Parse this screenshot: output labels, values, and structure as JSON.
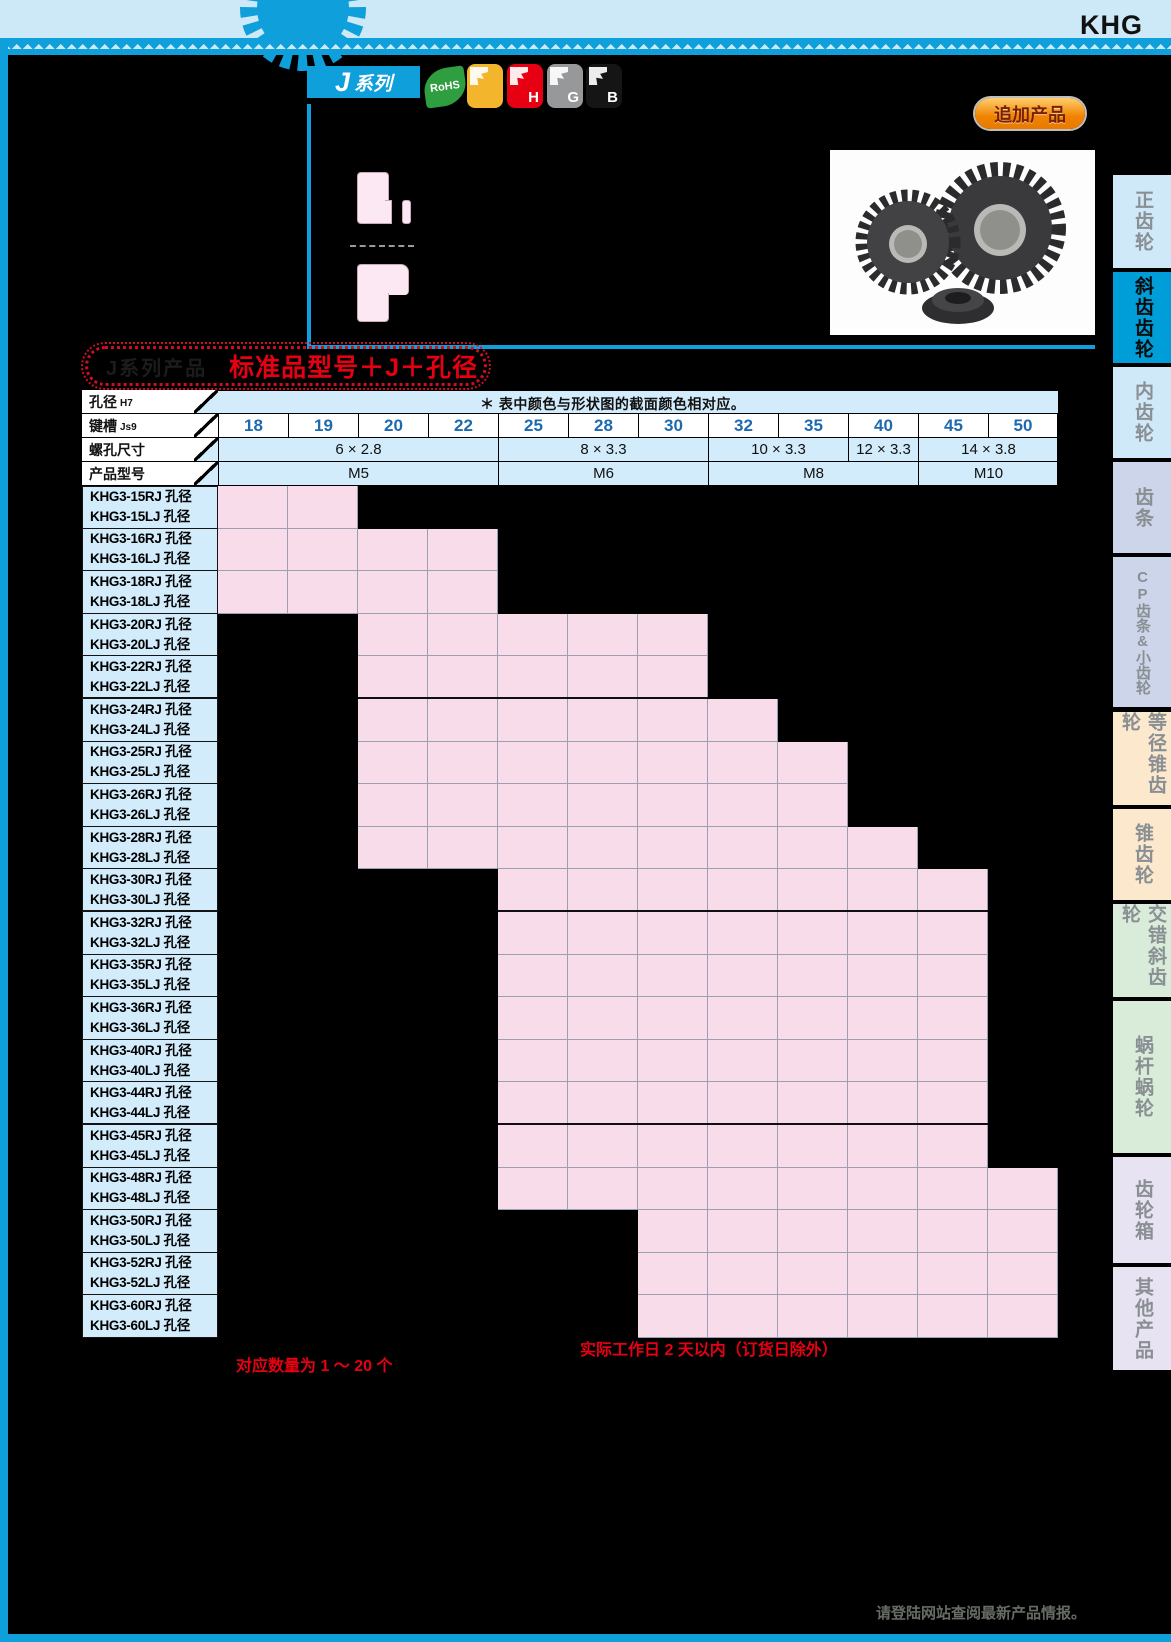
{
  "brand": "KHG",
  "header": {
    "series_badge_j": "J",
    "series_badge_text": "系列",
    "icons": [
      {
        "name": "rohs-icon",
        "label": "RoHS",
        "color": "#2f9e41"
      },
      {
        "name": "finishing-icon",
        "label": "",
        "color": "#f3b52c"
      },
      {
        "name": "hardened-icon",
        "label": "H",
        "color": "#e60012"
      },
      {
        "name": "ground-icon",
        "label": "G",
        "color": "#97989a"
      },
      {
        "name": "black-oxide-icon",
        "label": "B",
        "color": "#151515"
      }
    ],
    "addon_badge": "追加产品"
  },
  "banner": {
    "left_label": "J系列产品",
    "title": "标准品型号＋J＋孔径"
  },
  "table": {
    "corner_labels": [
      {
        "text": "孔径",
        "sub": "H7"
      },
      {
        "text": "键槽",
        "sub": "Js9"
      },
      {
        "text": "螺孔尺寸",
        "sub": ""
      },
      {
        "text": "产品型号",
        "sub": ""
      }
    ],
    "note": "＊ 表中颜色与形状图的截面颜色相对应。",
    "bores": [
      "18",
      "19",
      "20",
      "22",
      "25",
      "28",
      "30",
      "32",
      "35",
      "40",
      "45",
      "50"
    ],
    "tap_sizes": [
      {
        "text": "6 × 2.8",
        "start": 0,
        "end": 3
      },
      {
        "text": "8 × 3.3",
        "start": 4,
        "end": 6
      },
      {
        "text": "10 × 3.3",
        "start": 7,
        "end": 8
      },
      {
        "text": "12 × 3.3",
        "start": 9,
        "end": 9
      },
      {
        "text": "14 × 3.8",
        "start": 10,
        "end": 11
      }
    ],
    "modules": [
      {
        "text": "M5",
        "start": 0,
        "end": 3
      },
      {
        "text": "M6",
        "start": 4,
        "end": 6
      },
      {
        "text": "M8",
        "start": 7,
        "end": 9
      },
      {
        "text": "M10",
        "start": 10,
        "end": 11
      }
    ],
    "rows": [
      {
        "r": "KHG3-15RJ 孔径",
        "l": "KHG3-15LJ 孔径",
        "start": 0,
        "end": 1
      },
      {
        "r": "KHG3-16RJ 孔径",
        "l": "KHG3-16LJ 孔径",
        "start": 0,
        "end": 3
      },
      {
        "r": "KHG3-18RJ 孔径",
        "l": "KHG3-18LJ 孔径",
        "start": 0,
        "end": 3
      },
      {
        "r": "KHG3-20RJ 孔径",
        "l": "KHG3-20LJ 孔径",
        "start": 2,
        "end": 6
      },
      {
        "r": "KHG3-22RJ 孔径",
        "l": "KHG3-22LJ 孔径",
        "start": 2,
        "end": 6
      },
      {
        "r": "KHG3-24RJ 孔径",
        "l": "KHG3-24LJ 孔径",
        "start": 2,
        "end": 7
      },
      {
        "r": "KHG3-25RJ 孔径",
        "l": "KHG3-25LJ 孔径",
        "start": 2,
        "end": 8
      },
      {
        "r": "KHG3-26RJ 孔径",
        "l": "KHG3-26LJ 孔径",
        "start": 2,
        "end": 8
      },
      {
        "r": "KHG3-28RJ 孔径",
        "l": "KHG3-28LJ 孔径",
        "start": 2,
        "end": 9
      },
      {
        "r": "KHG3-30RJ 孔径",
        "l": "KHG3-30LJ 孔径",
        "start": 4,
        "end": 10
      },
      {
        "r": "KHG3-32RJ 孔径",
        "l": "KHG3-32LJ 孔径",
        "start": 4,
        "end": 10
      },
      {
        "r": "KHG3-35RJ 孔径",
        "l": "KHG3-35LJ 孔径",
        "start": 4,
        "end": 10
      },
      {
        "r": "KHG3-36RJ 孔径",
        "l": "KHG3-36LJ 孔径",
        "start": 4,
        "end": 10
      },
      {
        "r": "KHG3-40RJ 孔径",
        "l": "KHG3-40LJ 孔径",
        "start": 4,
        "end": 10
      },
      {
        "r": "KHG3-44RJ 孔径",
        "l": "KHG3-44LJ 孔径",
        "start": 4,
        "end": 10
      },
      {
        "r": "KHG3-45RJ 孔径",
        "l": "KHG3-45LJ 孔径",
        "start": 4,
        "end": 10
      },
      {
        "r": "KHG3-48RJ 孔径",
        "l": "KHG3-48LJ 孔径",
        "start": 4,
        "end": 11
      },
      {
        "r": "KHG3-50RJ 孔径",
        "l": "KHG3-50LJ 孔径",
        "start": 6,
        "end": 11
      },
      {
        "r": "KHG3-52RJ 孔径",
        "l": "KHG3-52LJ 孔径",
        "start": 6,
        "end": 11
      },
      {
        "r": "KHG3-60RJ 孔径",
        "l": "KHG3-60LJ 孔径",
        "start": 6,
        "end": 11
      }
    ],
    "thick_after_indices": [
      4,
      9,
      14
    ]
  },
  "notes": {
    "lead_time": "实际工作日 2 天以内（订货日除外）",
    "quantity": "对应数量为 1 ～ 20 个"
  },
  "footer": {
    "website_note": "请登陆网站查阅最新产品情报。"
  },
  "sidebar": {
    "tabs": [
      {
        "label": "正齿轮",
        "bg": "#cfe9f8",
        "active": false
      },
      {
        "label": "斜齿齿轮",
        "bg": "#009ed8",
        "active": true
      },
      {
        "label": "内齿轮",
        "bg": "#cfe9f8",
        "active": false
      },
      {
        "label": "齿条",
        "bg": "#ccd5e9",
        "active": false
      },
      {
        "label": "小齿轮&CP齿条",
        "cols": [
          "CP齿条",
          "&小齿轮"
        ],
        "bg": "#ccd5e9",
        "active": false
      },
      {
        "label": "等径锥齿轮",
        "bg": "#fbe8cd",
        "active": false
      },
      {
        "label": "锥齿轮",
        "bg": "#fbe8cd",
        "active": false
      },
      {
        "label": "交错斜齿轮",
        "bg": "#d9ecd9",
        "active": false
      },
      {
        "label": "蜗杆蜗轮",
        "bg": "#d9ecd9",
        "active": false
      },
      {
        "label": "齿轮箱",
        "bg": "#e7e3f2",
        "active": false
      },
      {
        "label": "其他产品",
        "bg": "#e7e3f2",
        "active": false
      }
    ]
  },
  "colors": {
    "frame_blue": "#0f9fdb",
    "band_blue": "#cde9f8",
    "table_blue": "#d2ecfb",
    "pink": "#f9dce9",
    "red": "#e60012",
    "number_blue": "#1d6ab0",
    "active_tab": "#009ed8",
    "addon_orange": "#f08300"
  }
}
